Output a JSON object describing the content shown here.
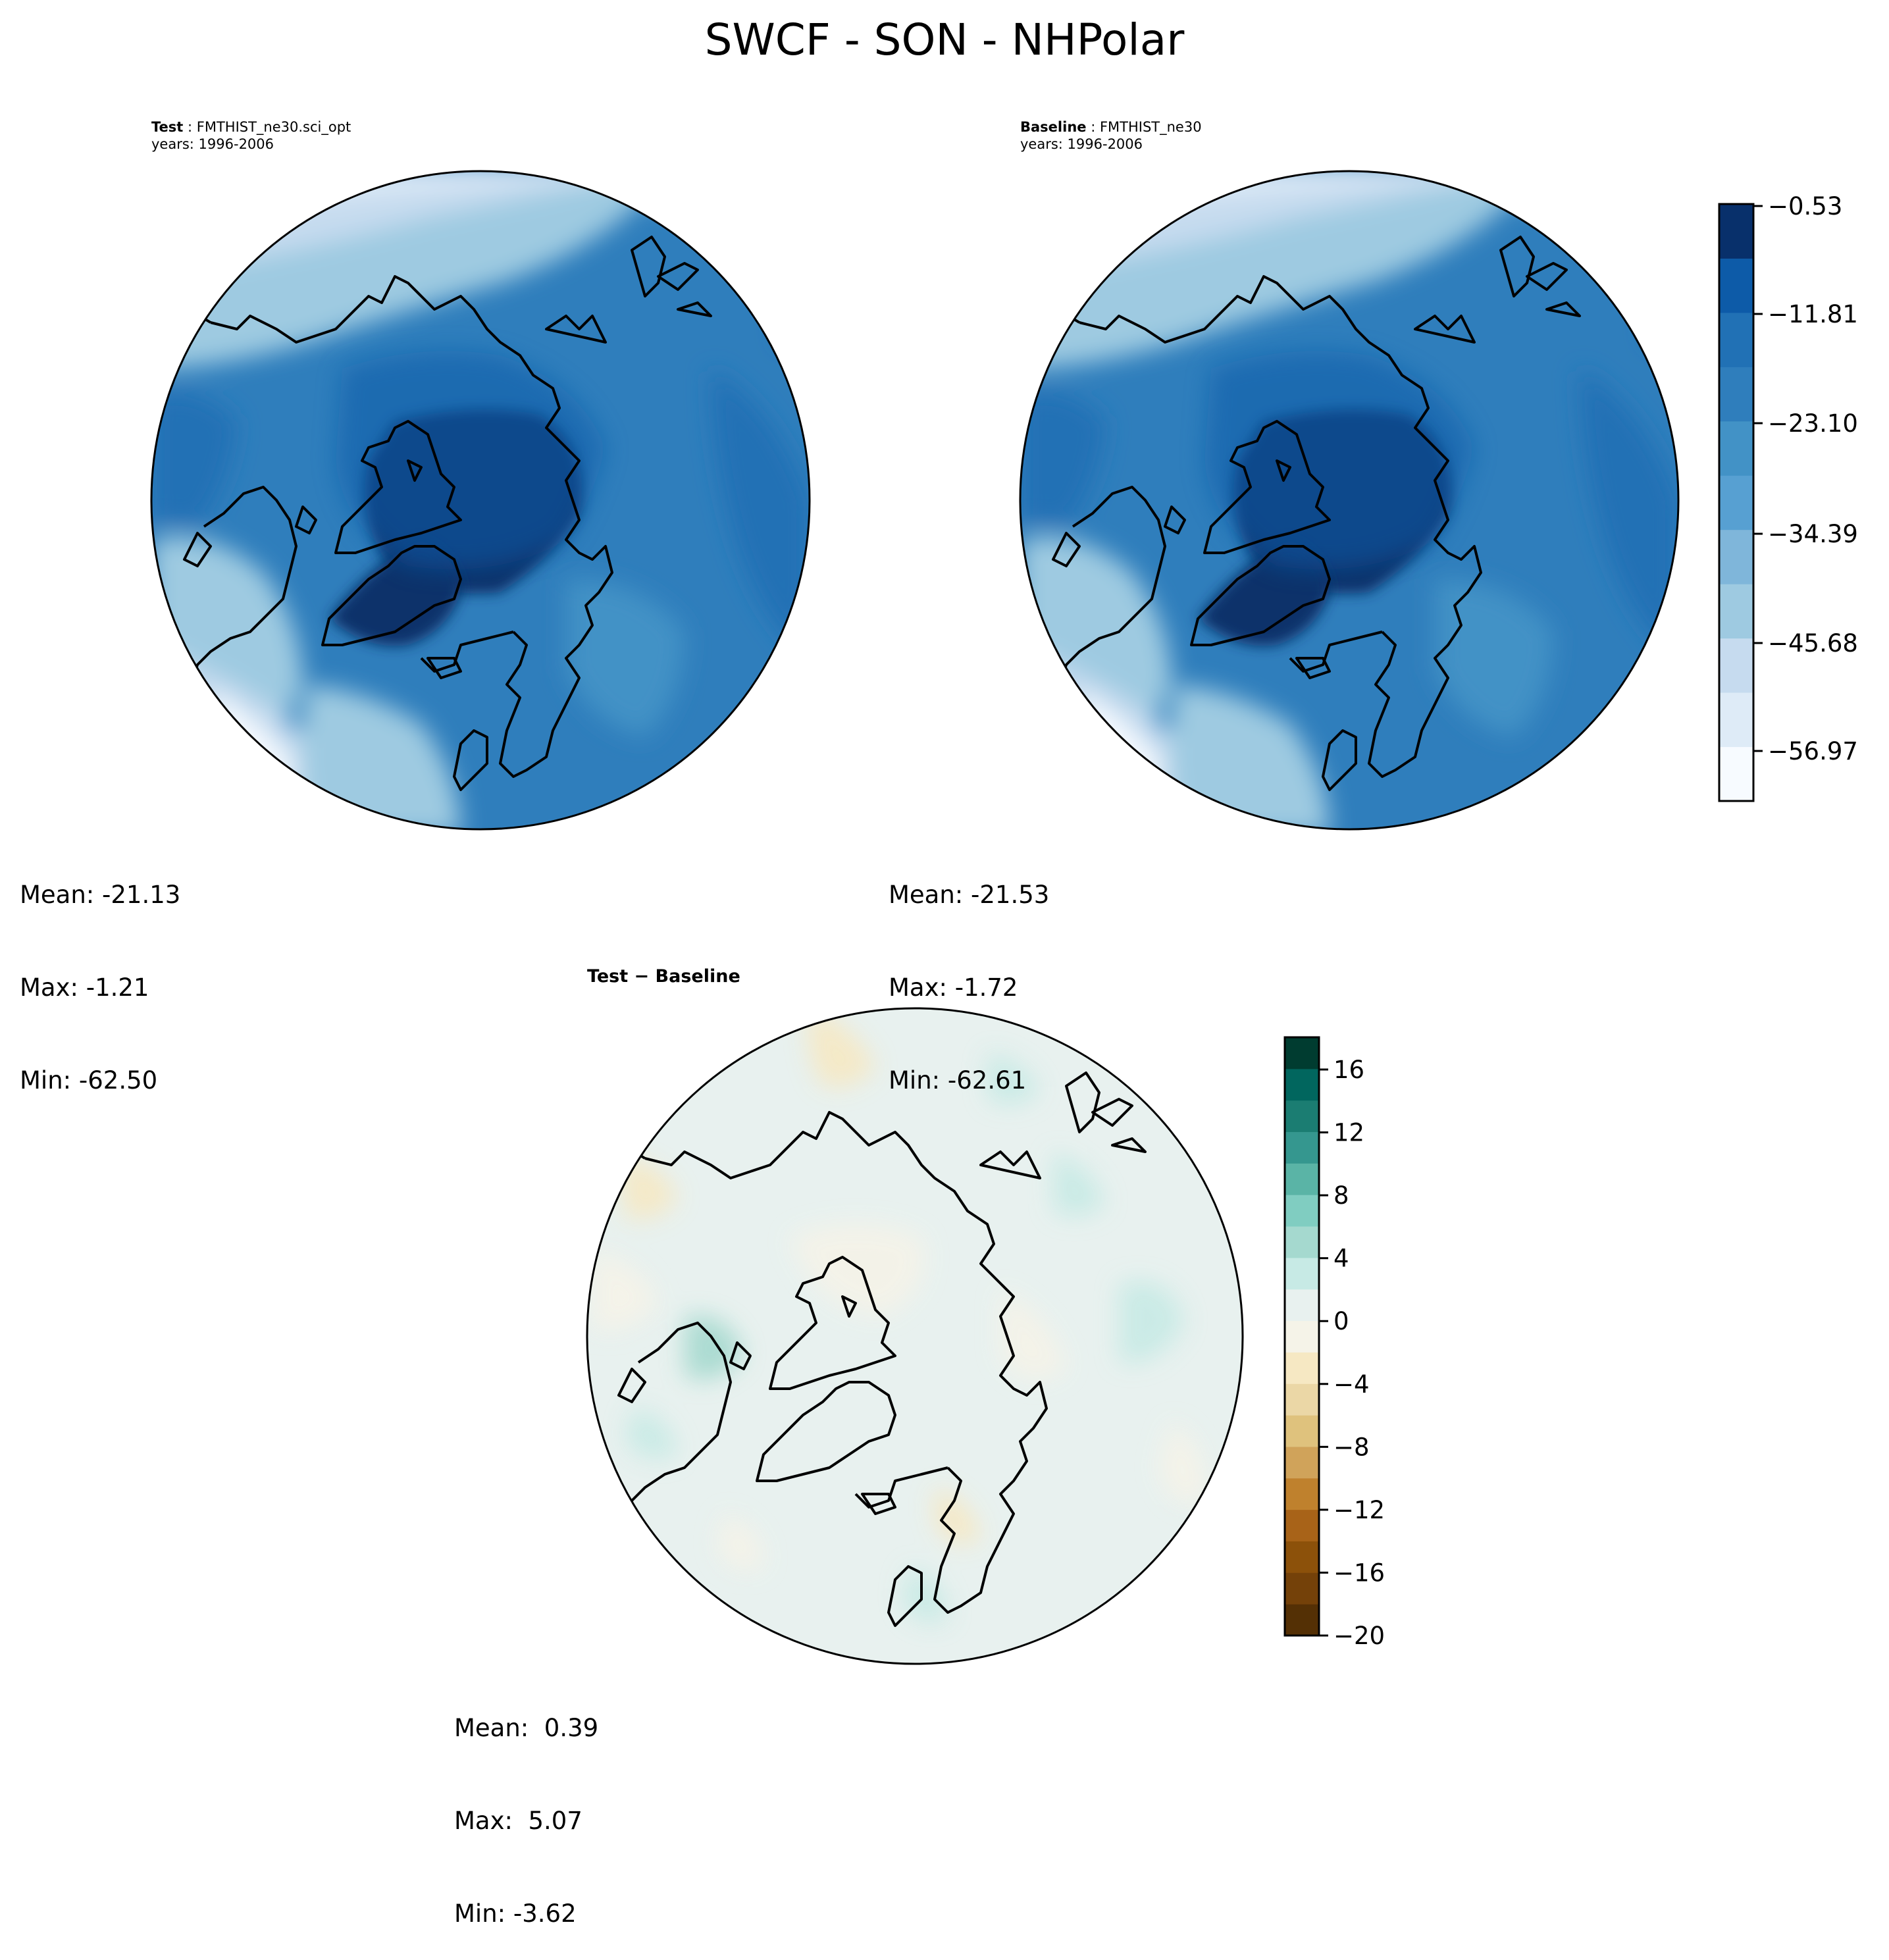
{
  "title": "SWCF - SON - NHPolar",
  "panels": {
    "test": {
      "label_bold": "Test",
      "label_sep": " : ",
      "case": "FMTHIST_ne30.sci_opt",
      "years": "years: 1996-2006",
      "stats": {
        "mean": "Mean: -21.13",
        "max": "Max: -1.21",
        "min": "Min: -62.50"
      }
    },
    "baseline": {
      "label_bold": "Baseline",
      "label_sep": " : ",
      "case": "FMTHIST_ne30",
      "years": "years: 1996-2006",
      "stats": {
        "mean": "Mean: -21.53",
        "max": "Max: -1.72",
        "min": "Min: -62.61"
      }
    },
    "diff": {
      "title": "Test − Baseline",
      "stats": {
        "mean": "Mean:  0.39",
        "max": "Max:  5.07",
        "min": "Min: -3.62"
      }
    }
  },
  "colorbars": {
    "main": {
      "ticks": [
        "−0.53",
        "−11.81",
        "−23.10",
        "−34.39",
        "−45.68",
        "−56.97"
      ],
      "colors": [
        "#f7fbff",
        "#deebf7",
        "#c6dbef",
        "#9ecae1",
        "#7fb6da",
        "#57a0d2",
        "#4292c6",
        "#2f7ebc",
        "#2171b5",
        "#0d5ba8",
        "#08306b"
      ]
    },
    "diff": {
      "ticks": [
        "16",
        "12",
        "8",
        "4",
        "0",
        "−4",
        "−8",
        "−12",
        "−16",
        "−20"
      ],
      "colors": [
        "#543005",
        "#744109",
        "#8c510a",
        "#a86318",
        "#bf812d",
        "#d0a35a",
        "#dfc27d",
        "#ebd7a6",
        "#f6e8c3",
        "#f5f3e8",
        "#e8f1ef",
        "#c7eae5",
        "#a5d9cf",
        "#80cdc1",
        "#5ab4a6",
        "#35978f",
        "#1b7d72",
        "#01665e",
        "#003c30"
      ]
    }
  }
}
